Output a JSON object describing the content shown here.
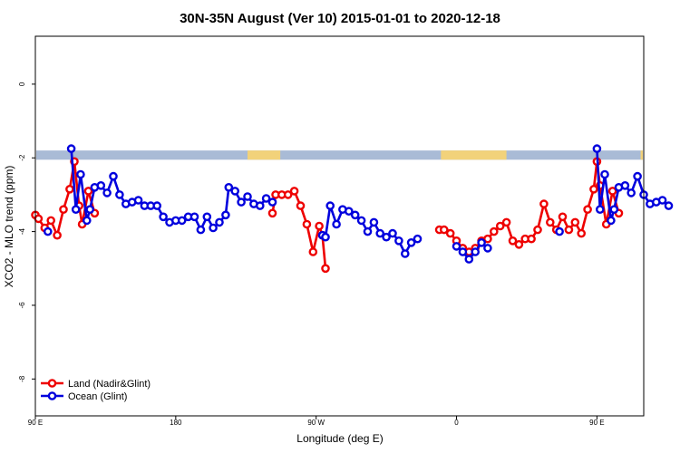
{
  "chart_data": {
    "type": "line",
    "title": "30N-35N August (Ver 10)   2015-01-01 to 2020-12-18",
    "xlabel": "Longitude (deg E)",
    "ylabel": "XCO2 - MLO trend (ppm)",
    "xlim": [
      90,
      480
    ],
    "ylim": [
      -9.0,
      1.3
    ],
    "x_ticks": [
      {
        "value": 90,
        "label": "90 E"
      },
      {
        "value": 180,
        "label": "180"
      },
      {
        "value": 270,
        "label": "90 W"
      },
      {
        "value": 360,
        "label": "0"
      },
      {
        "value": 450,
        "label": "90 E"
      },
      {
        "value": 540,
        "label": "180"
      }
    ],
    "y_ticks": [
      {
        "value": 0,
        "label": "0"
      },
      {
        "value": -2,
        "label": "-2"
      },
      {
        "value": -4,
        "label": "-4"
      },
      {
        "value": -6,
        "label": "-6"
      },
      {
        "value": -8,
        "label": "-8"
      }
    ],
    "legend_position": "bottom-left",
    "grid": false,
    "land_ocean_strip": {
      "y_top": -1.8,
      "y_bottom": -2.05,
      "ocean_color": "#a9bbd6",
      "land_color": "#f2d27a",
      "land_ranges": [
        [
          226,
          247
        ],
        [
          350,
          392
        ],
        [
          478,
          490
        ]
      ]
    },
    "series": [
      {
        "name": "Land (Nadir&Glint)",
        "color": "#ee0000",
        "segments": [
          [
            [
              90,
              -3.55
            ],
            [
              92,
              -3.65
            ],
            [
              96,
              -3.9
            ],
            [
              100,
              -3.7
            ],
            [
              104,
              -4.1
            ],
            [
              108,
              -3.4
            ],
            [
              112,
              -2.85
            ],
            [
              115,
              -2.1
            ],
            [
              118,
              -3.3
            ],
            [
              120,
              -3.8
            ],
            [
              124,
              -2.9
            ],
            [
              128,
              -3.5
            ]
          ],
          [
            [
              242,
              -3.5
            ],
            [
              244,
              -3.0
            ],
            [
              248,
              -3.0
            ],
            [
              252,
              -3.0
            ],
            [
              256,
              -2.9
            ],
            [
              260,
              -3.3
            ],
            [
              264,
              -3.8
            ],
            [
              268,
              -4.55
            ],
            [
              272,
              -3.85
            ],
            [
              274,
              -4.1
            ],
            [
              276,
              -5.0
            ]
          ],
          [
            [
              349,
              -3.95
            ],
            [
              352,
              -3.95
            ],
            [
              356,
              -4.05
            ],
            [
              360,
              -4.25
            ],
            [
              364,
              -4.45
            ],
            [
              368,
              -4.55
            ],
            [
              372,
              -4.45
            ],
            [
              376,
              -4.25
            ],
            [
              380,
              -4.2
            ],
            [
              384,
              -4.0
            ],
            [
              388,
              -3.85
            ],
            [
              392,
              -3.75
            ],
            [
              396,
              -4.25
            ],
            [
              400,
              -4.35
            ],
            [
              404,
              -4.2
            ],
            [
              408,
              -4.2
            ],
            [
              412,
              -3.95
            ],
            [
              416,
              -3.25
            ],
            [
              420,
              -3.75
            ],
            [
              424,
              -3.95
            ],
            [
              428,
              -3.6
            ],
            [
              432,
              -3.95
            ],
            [
              436,
              -3.75
            ],
            [
              440,
              -4.05
            ],
            [
              444,
              -3.4
            ],
            [
              448,
              -2.85
            ],
            [
              450,
              -2.1
            ],
            [
              452,
              -2.75
            ],
            [
              456,
              -3.8
            ],
            [
              460,
              -2.9
            ],
            [
              464,
              -3.5
            ]
          ]
        ]
      },
      {
        "name": "Ocean (Glint)",
        "color": "#0000dd",
        "segments": [
          [
            [
              98,
              -4.0
            ]
          ],
          [
            [
              113,
              -1.75
            ],
            [
              116,
              -3.4
            ],
            [
              119,
              -2.45
            ],
            [
              123,
              -3.7
            ],
            [
              125,
              -3.4
            ],
            [
              128,
              -2.8
            ],
            [
              132,
              -2.75
            ],
            [
              136,
              -2.95
            ],
            [
              140,
              -2.5
            ],
            [
              144,
              -3.0
            ],
            [
              148,
              -3.25
            ],
            [
              152,
              -3.2
            ],
            [
              156,
              -3.15
            ],
            [
              160,
              -3.3
            ],
            [
              164,
              -3.3
            ],
            [
              168,
              -3.3
            ],
            [
              172,
              -3.6
            ],
            [
              176,
              -3.75
            ],
            [
              180,
              -3.7
            ],
            [
              184,
              -3.7
            ],
            [
              188,
              -3.6
            ],
            [
              192,
              -3.6
            ],
            [
              196,
              -3.95
            ],
            [
              200,
              -3.6
            ],
            [
              204,
              -3.9
            ],
            [
              208,
              -3.75
            ],
            [
              212,
              -3.55
            ],
            [
              214,
              -2.8
            ],
            [
              218,
              -2.9
            ],
            [
              222,
              -3.2
            ],
            [
              226,
              -3.05
            ],
            [
              230,
              -3.25
            ],
            [
              234,
              -3.3
            ],
            [
              238,
              -3.1
            ],
            [
              242,
              -3.2
            ]
          ],
          [
            [
              274,
              -4.1
            ],
            [
              276,
              -4.15
            ],
            [
              279,
              -3.3
            ],
            [
              283,
              -3.8
            ],
            [
              287,
              -3.4
            ],
            [
              291,
              -3.45
            ],
            [
              295,
              -3.55
            ],
            [
              299,
              -3.7
            ],
            [
              303,
              -4.0
            ],
            [
              307,
              -3.75
            ],
            [
              311,
              -4.05
            ],
            [
              315,
              -4.15
            ],
            [
              319,
              -4.05
            ],
            [
              323,
              -4.25
            ],
            [
              327,
              -4.6
            ],
            [
              331,
              -4.3
            ],
            [
              335,
              -4.2
            ]
          ],
          [
            [
              360,
              -4.4
            ],
            [
              364,
              -4.55
            ],
            [
              368,
              -4.75
            ],
            [
              372,
              -4.55
            ],
            [
              376,
              -4.3
            ],
            [
              380,
              -4.45
            ]
          ],
          [
            [
              426,
              -4.0
            ]
          ],
          [
            [
              450,
              -1.75
            ],
            [
              452,
              -3.4
            ],
            [
              455,
              -2.45
            ],
            [
              459,
              -3.7
            ],
            [
              461,
              -3.4
            ],
            [
              464,
              -2.8
            ],
            [
              468,
              -2.75
            ],
            [
              472,
              -2.95
            ],
            [
              476,
              -2.5
            ],
            [
              480,
              -3.0
            ],
            [
              484,
              -3.25
            ],
            [
              488,
              -3.2
            ],
            [
              492,
              -3.15
            ],
            [
              496,
              -3.3
            ]
          ]
        ]
      }
    ]
  }
}
